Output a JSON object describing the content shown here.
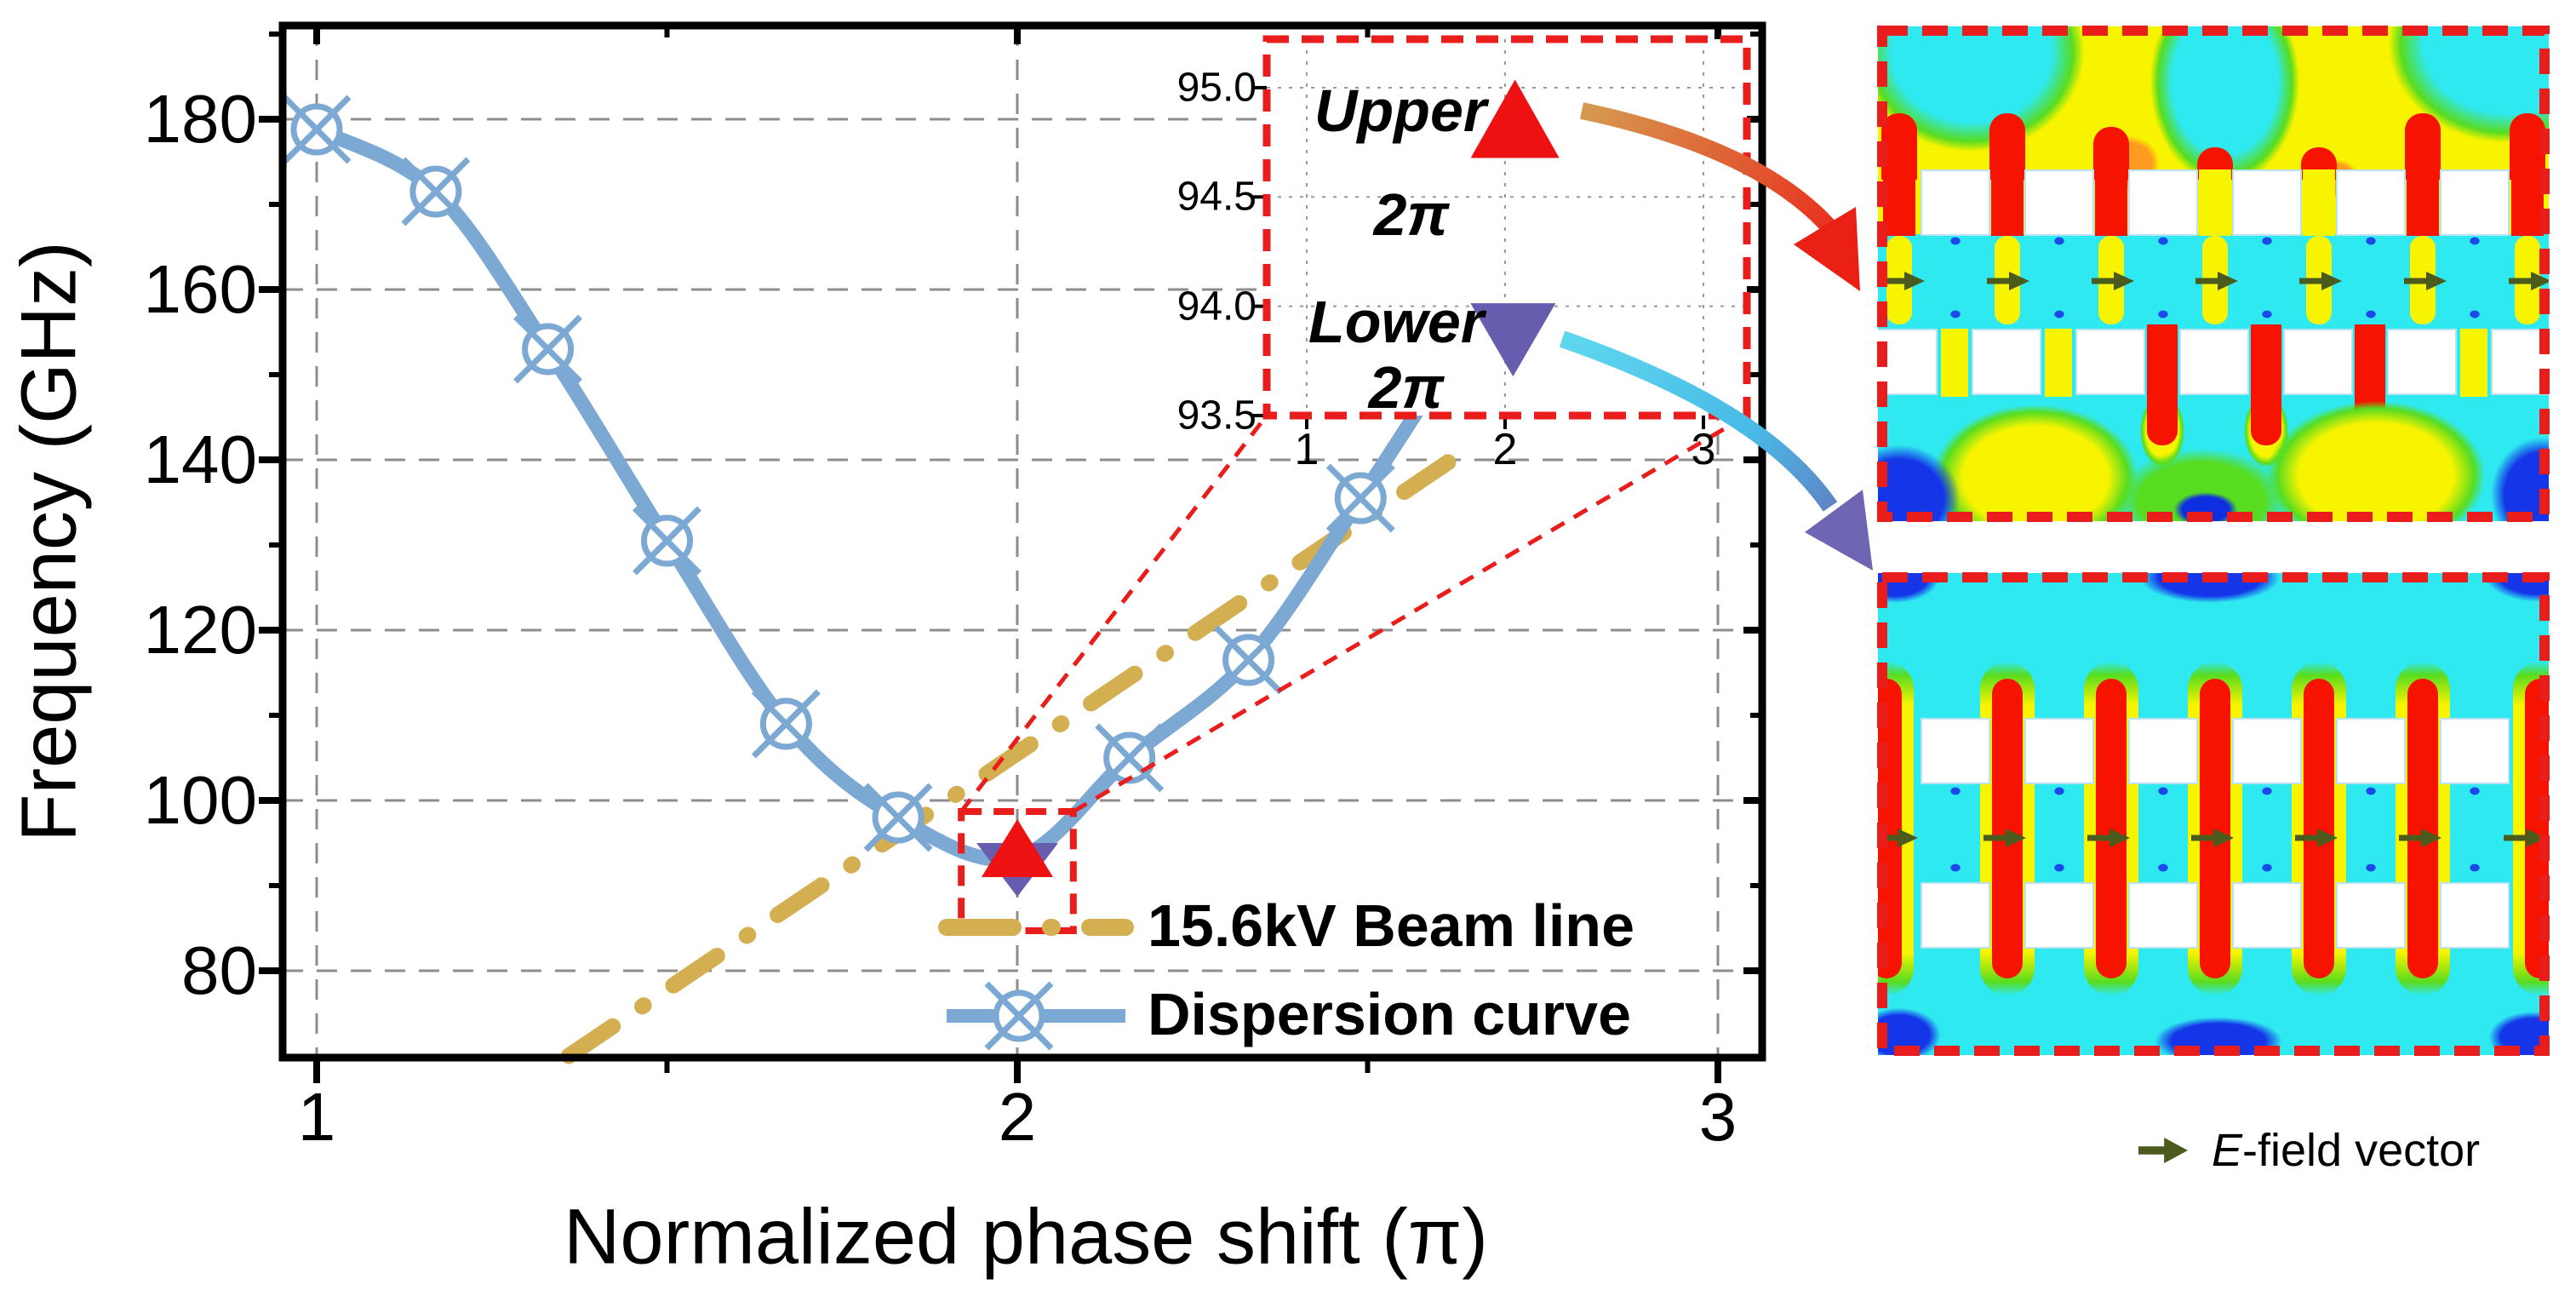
{
  "axis": {
    "xlabel": "Normalized phase shift (π)",
    "ylabel": "Frequency (GHz)"
  },
  "legend": {
    "items": [
      {
        "label": "15.6kV Beam line",
        "color": "#d3af52",
        "style": "dash-dot"
      },
      {
        "label": "Dispersion curve",
        "color": "#7ca9d4",
        "style": "solid-circle-x"
      }
    ]
  },
  "inset": {
    "upper": {
      "line1": "Upper",
      "line2": "2π"
    },
    "lower": {
      "line1": "Lower",
      "line2": "2π"
    },
    "yticks": [
      "95.0",
      "94.5",
      "94.0",
      "93.5"
    ],
    "xticks": [
      "1",
      "2",
      "3"
    ]
  },
  "efield_legend": {
    "italic": "E",
    "rest": "-field vector"
  },
  "colors": {
    "dispersion_blue": "#7ca9d4",
    "beam_gold": "#d3af52",
    "marker_red": "#ee1111",
    "marker_purple": "#665dae",
    "dashed_red": "#ea1d1d",
    "grid_gray": "#8c8c8c",
    "efield_cyan": "#2fe9f1",
    "efield_yellow": "#f8f400",
    "efield_red": "#f61400",
    "efield_green": "#58dc20",
    "efield_blue": "#1536e8",
    "efield_arrow_olive": "#4a5b1d"
  },
  "chart_data": [
    {
      "id": "main",
      "type": "line",
      "title": "",
      "xlabel": "Normalized phase shift (π)",
      "ylabel": "Frequency (GHz)",
      "xlim": [
        0.95,
        3.05
      ],
      "ylim": [
        70,
        191
      ],
      "xticks": [
        1,
        2,
        3
      ],
      "xminor": [
        1.5,
        2.5
      ],
      "yticks": [
        80,
        100,
        120,
        140,
        160,
        180
      ],
      "yminor": [
        90,
        110,
        130,
        150,
        170,
        190
      ],
      "grid": true,
      "legend_position": "lower right",
      "series": [
        {
          "name": "Dispersion curve",
          "color": "#7ca9d4",
          "marker": "circle-x",
          "x": [
            1.0,
            1.17,
            1.33,
            1.5,
            1.67,
            1.83,
            2.0,
            2.16,
            2.33,
            2.49,
            2.62
          ],
          "y": [
            178.8,
            171.5,
            153.0,
            130.5,
            109.0,
            98.0,
            93.3,
            105.0,
            116.5,
            135.5,
            152.0
          ],
          "marker_at": [
            true,
            true,
            true,
            true,
            true,
            true,
            false,
            true,
            true,
            true,
            false
          ]
        },
        {
          "name": "15.6kV Beam line",
          "color": "#d3af52",
          "style": "dash-dot",
          "x": [
            1.36,
            2.62
          ],
          "y": [
            70,
            140
          ]
        },
        {
          "name": "Upper 2π mode",
          "marker": "triangle-up",
          "color": "#ee1111",
          "x": [
            2.0
          ],
          "y": [
            94.8
          ]
        },
        {
          "name": "Lower 2π mode",
          "marker": "triangle-down",
          "color": "#665dae",
          "x": [
            2.0
          ],
          "y": [
            93.8
          ]
        }
      ],
      "annotations": {
        "zoom_box": {
          "x": [
            1.92,
            2.08
          ],
          "y": [
            84.7,
            98.7
          ]
        }
      }
    },
    {
      "id": "inset-zoom",
      "type": "scatter",
      "xlim": [
        0.8,
        3.2
      ],
      "ylim": [
        93.5,
        95.23
      ],
      "xticks": [
        1,
        2,
        3
      ],
      "yticks": [
        93.5,
        94.0,
        94.5,
        95.0
      ],
      "grid": true,
      "points": [
        {
          "label": "Upper 2π",
          "x": 2.05,
          "y": 94.85,
          "marker": "triangle-up",
          "color": "#ee1111"
        },
        {
          "label": "Lower 2π",
          "x": 2.04,
          "y": 93.85,
          "marker": "triangle-down",
          "color": "#665dae"
        }
      ]
    }
  ]
}
